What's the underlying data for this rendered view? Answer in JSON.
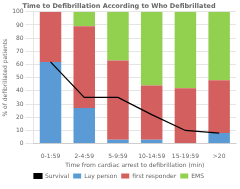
{
  "chart_data": {
    "type": "bar",
    "title": "Time to Defibrillation According to Who Defibrillated",
    "xlabel": "Time from cardiac arrest to defibrillation (min)",
    "ylabel": "% of defibrillated patients",
    "categories": [
      "0-1:59",
      "2-4:59",
      "5-9:59",
      "10-14:59",
      "15-19:59",
      ">20"
    ],
    "series": [
      {
        "name": "Lay person",
        "color": "#5b9bd5",
        "values": [
          62,
          27,
          3,
          3,
          0,
          8
        ]
      },
      {
        "name": "first responder",
        "color": "#d45f5f",
        "values": [
          38,
          62,
          60,
          41,
          42,
          40
        ]
      },
      {
        "name": "EMS",
        "color": "#92d050",
        "values": [
          0,
          11,
          37,
          56,
          58,
          52
        ]
      },
      {
        "name": "Survival",
        "color": "#000000",
        "type": "line",
        "values": [
          62,
          35,
          35,
          22,
          10,
          8
        ]
      }
    ],
    "stacked": true,
    "ylim": [
      0,
      100
    ],
    "yticks": [
      0,
      10,
      20,
      30,
      40,
      50,
      60,
      70,
      80,
      90,
      100
    ],
    "grid": true,
    "legend": "bottom"
  }
}
